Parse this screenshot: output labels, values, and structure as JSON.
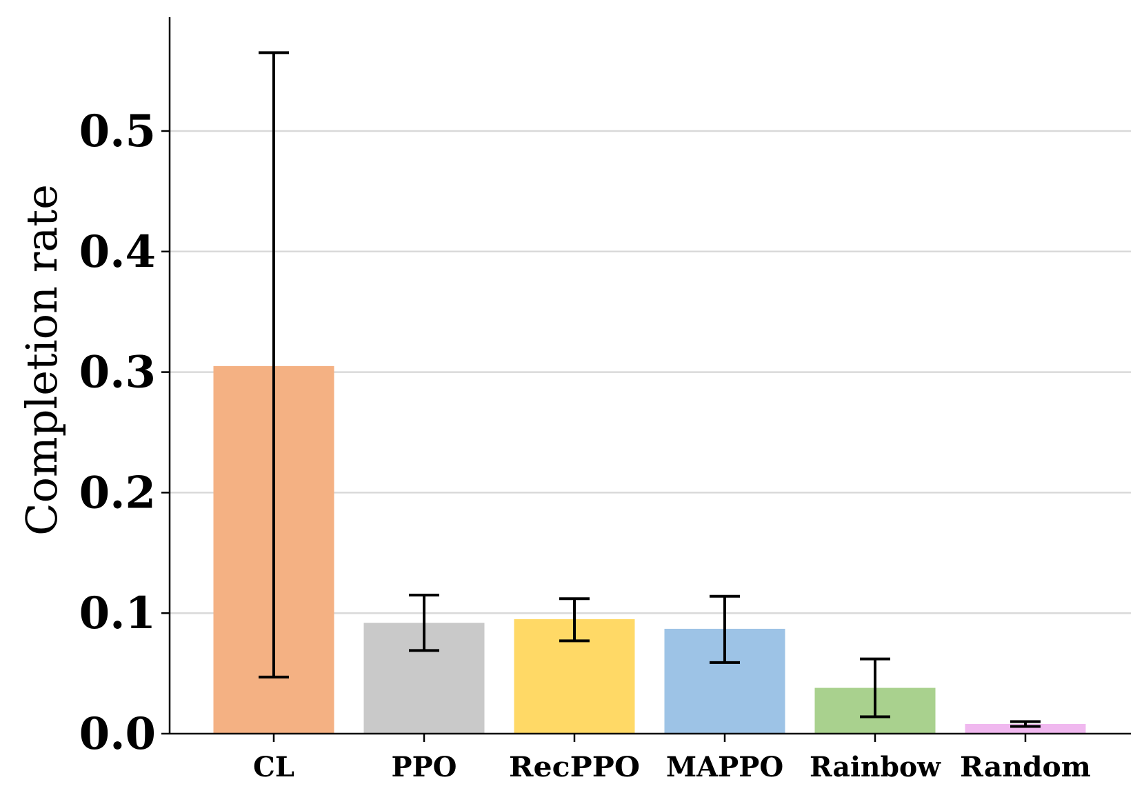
{
  "chart_data": {
    "type": "bar",
    "title": "",
    "xlabel": "",
    "ylabel": "Completion rate",
    "ylim": [
      0,
      0.59
    ],
    "yticks": [
      0.0,
      0.1,
      0.2,
      0.3,
      0.4,
      0.5
    ],
    "ytick_labels": [
      "0.0",
      "0.1",
      "0.2",
      "0.3",
      "0.4",
      "0.5"
    ],
    "grid": "horizontal",
    "categories": [
      "CL",
      "PPO",
      "RecPPO",
      "MAPPO",
      "Rainbow",
      "Random"
    ],
    "values": [
      0.305,
      0.092,
      0.095,
      0.087,
      0.038,
      0.008
    ],
    "error_low": [
      0.047,
      0.069,
      0.077,
      0.059,
      0.014,
      0.006
    ],
    "error_high": [
      0.565,
      0.115,
      0.112,
      0.114,
      0.062,
      0.01
    ],
    "colors": [
      "#f4b183",
      "#c9c9c9",
      "#ffd966",
      "#9dc3e6",
      "#a9d18e",
      "#f0b8ef"
    ]
  }
}
